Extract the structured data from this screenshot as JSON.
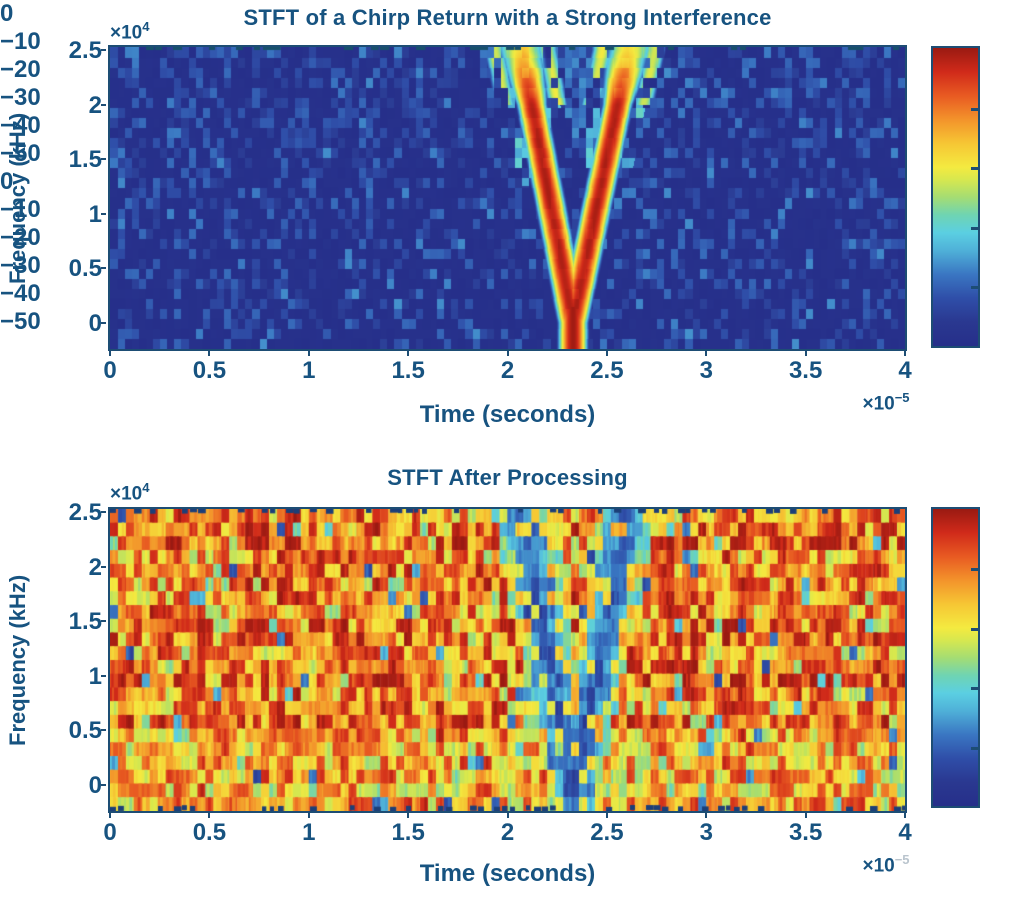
{
  "colors": {
    "text": "#175380",
    "axis_border": "#1d4d74",
    "background": "#ffffff",
    "edge_dash_fig1": "#17506b",
    "edge_dash_fig2": "#1c3f78",
    "faded_exponent": "#b9c4cd"
  },
  "colormap": {
    "name": "jet-like",
    "range_db": [
      -50,
      0
    ],
    "stops": [
      [
        0.0,
        "#262f8a"
      ],
      [
        0.08,
        "#2a3890"
      ],
      [
        0.16,
        "#2f4ea8"
      ],
      [
        0.24,
        "#3a76c2"
      ],
      [
        0.32,
        "#4fb0d8"
      ],
      [
        0.38,
        "#5bcfe2"
      ],
      [
        0.44,
        "#6fd4b2"
      ],
      [
        0.5,
        "#a5dd72"
      ],
      [
        0.56,
        "#d8e84e"
      ],
      [
        0.6,
        "#f4ea40"
      ],
      [
        0.68,
        "#f6c634"
      ],
      [
        0.76,
        "#f3932b"
      ],
      [
        0.84,
        "#e85a22"
      ],
      [
        0.92,
        "#d02a1a"
      ],
      [
        1.0,
        "#9a1a12"
      ]
    ]
  },
  "chart_data": [
    {
      "type": "heatmap",
      "subtype": "spectrogram",
      "title": "STFT of a Chirp Return with a Strong Interference",
      "xlabel": "Time (seconds)",
      "ylabel": "Frequency (kHz)",
      "y_mult_base": "×10",
      "y_mult_exp": "4",
      "x_mult_base": "×10",
      "x_mult_exp": "−5",
      "xlim": [
        0,
        4e-05
      ],
      "ylim": [
        -2390,
        25275
      ],
      "x_ticks": [
        {
          "label": "0",
          "t": 0
        },
        {
          "label": "0.5",
          "t": 5e-06
        },
        {
          "label": "1",
          "t": 1e-05
        },
        {
          "label": "1.5",
          "t": 1.5e-05
        },
        {
          "label": "2",
          "t": 2e-05
        },
        {
          "label": "2.5",
          "t": 2.5e-05
        },
        {
          "label": "3",
          "t": 3e-05
        },
        {
          "label": "3.5",
          "t": 3.5e-05
        },
        {
          "label": "4",
          "t": 4e-05
        }
      ],
      "y_ticks": [
        {
          "label": "2.5",
          "f": 25000
        },
        {
          "label": "2",
          "f": 20000
        },
        {
          "label": "1.5",
          "f": 15000
        },
        {
          "label": "1",
          "f": 10000
        },
        {
          "label": "0.5",
          "f": 5000
        },
        {
          "label": "0",
          "f": 0
        }
      ],
      "colorbar_ticks": [
        "0",
        "−10",
        "−20",
        "−30",
        "−40",
        "−50"
      ],
      "content": {
        "background_db": -50,
        "noise_speckle_db": [
          -45.5,
          -39
        ],
        "noise_density": [
          0.26,
          0.4
        ],
        "chirp": {
          "vertex_time": 2.33e-05,
          "vertex_freq": 0,
          "left_arm_top_time": 2.07e-05,
          "right_arm_top_time": 2.61e-05,
          "top_freq": 25000,
          "core_db": -2,
          "vertex_db": 0,
          "halfwidth_time": 5.5e-07
        },
        "seed": 20240101
      }
    },
    {
      "type": "heatmap",
      "subtype": "spectrogram",
      "title": "STFT After Processing",
      "xlabel": "Time (seconds)",
      "ylabel": "Frequency (kHz)",
      "y_mult_base": "×10",
      "y_mult_exp": "4",
      "x_mult_base": "×10",
      "x_mult_exp": "−5",
      "xlim": [
        0,
        4e-05
      ],
      "ylim": [
        -2390,
        25275
      ],
      "x_ticks": [
        {
          "label": "0",
          "t": 0
        },
        {
          "label": "0.5",
          "t": 5e-06
        },
        {
          "label": "1",
          "t": 1e-05
        },
        {
          "label": "1.5",
          "t": 1.5e-05
        },
        {
          "label": "2",
          "t": 2e-05
        },
        {
          "label": "2.5",
          "t": 2.5e-05
        },
        {
          "label": "3",
          "t": 3e-05
        },
        {
          "label": "3.5",
          "t": 3.5e-05
        },
        {
          "label": "4",
          "t": 4e-05
        }
      ],
      "y_ticks": [
        {
          "label": "2.5",
          "f": 25000
        },
        {
          "label": "2",
          "f": 20000
        },
        {
          "label": "1.5",
          "f": 15000
        },
        {
          "label": "1",
          "f": 10000
        },
        {
          "label": "0.5",
          "f": 5000
        },
        {
          "label": "0",
          "f": 0
        }
      ],
      "colorbar_ticks": [
        "0",
        "−10",
        "−20",
        "−30",
        "−40",
        "−50"
      ],
      "content": {
        "noise_db_range": [
          -26,
          -1
        ],
        "outlier_cyan_db": [
          -43,
          -27
        ],
        "notch": {
          "vertex_time": 2.33e-05,
          "left_arm_top_time": 2.07e-05,
          "right_arm_top_time": 2.61e-05,
          "top_freq": 25000,
          "notch_db": [
            -45,
            -23
          ],
          "halfwidth_time": 1.4e-06
        },
        "seed": 987654
      }
    }
  ]
}
